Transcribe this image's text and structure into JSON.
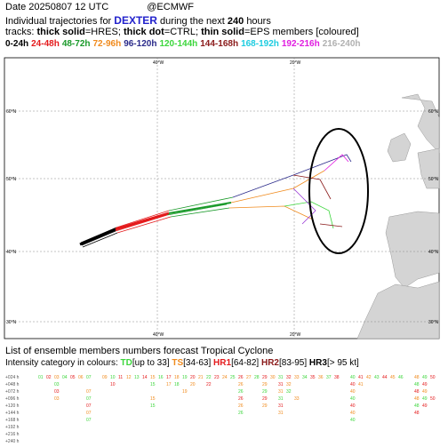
{
  "header": {
    "date": "Date 20250807 12 UTC",
    "source": "@ECMWF",
    "line2": {
      "prefix": "Individual trajectories for",
      "storm": "DEXTER",
      "middle": "during the next",
      "hours": "240",
      "suffix": "hours"
    },
    "line3": [
      {
        "text": "tracks: ",
        "bold": false
      },
      {
        "text": "thick solid",
        "bold": true
      },
      {
        "text": "=HRES; ",
        "bold": false
      },
      {
        "text": "thick dot",
        "bold": true
      },
      {
        "text": "=CTRL; ",
        "bold": false
      },
      {
        "text": "thin solid",
        "bold": true
      },
      {
        "text": "=EPS members [coloured]",
        "bold": false
      }
    ],
    "periods": [
      {
        "label": "0-24h",
        "color": "#000000"
      },
      {
        "label": "24-48h",
        "color": "#e41a1c"
      },
      {
        "label": "48-72h",
        "color": "#1a9a2a"
      },
      {
        "label": "72-96h",
        "color": "#f08a1c"
      },
      {
        "label": "96-120h",
        "color": "#2a2a8a"
      },
      {
        "label": "120-144h",
        "color": "#3cd63c"
      },
      {
        "label": "144-168h",
        "color": "#8a1a1a"
      },
      {
        "label": "168-192h",
        "color": "#1ccce0"
      },
      {
        "label": "192-216h",
        "color": "#e01ce0"
      },
      {
        "label": "216-240h",
        "color": "#b0b0b0"
      }
    ]
  },
  "map": {
    "lat_labels": [
      "60°N",
      "50°N",
      "40°N",
      "30°N"
    ],
    "lon_labels": [
      "40°W",
      "20°W"
    ]
  },
  "footer": {
    "title": "List of ensemble members numbers forecast Tropical Cyclone",
    "intensity": [
      {
        "text": "Intensity category in colours: ",
        "color": "#000000"
      },
      {
        "text": "TD",
        "color": "#3cd63c"
      },
      {
        "text": "[up to 33] ",
        "color": "#000000"
      },
      {
        "text": "TS",
        "color": "#f08a1c"
      },
      {
        "text": "[34-63] ",
        "color": "#000000"
      },
      {
        "text": "HR1",
        "color": "#e41a1c"
      },
      {
        "text": "[64-82] ",
        "color": "#000000"
      },
      {
        "text": "HR2",
        "color": "#8a1a1a"
      },
      {
        "text": "[83-95] ",
        "color": "#000000"
      },
      {
        "text": "HR3",
        "color": "#000000"
      },
      {
        "text": "[> 95 kt]",
        "color": "#000000"
      }
    ],
    "rows": [
      {
        "label": "+024 h",
        "members": [
          "01",
          "02",
          "03",
          "04",
          "05",
          "06",
          "07",
          "09",
          "10",
          "11",
          "12",
          "13",
          "14",
          "15",
          "16",
          "17",
          "18",
          "19",
          "20",
          "21",
          "22",
          "23",
          "24",
          "25",
          "26",
          "27",
          "28",
          "29",
          "30",
          "31",
          "32",
          "33",
          "34",
          "35",
          "36",
          "37",
          "38",
          "40",
          "41",
          "42",
          "43",
          "44",
          "45",
          "46",
          "48",
          "49",
          "50"
        ]
      },
      {
        "label": "+048 h",
        "members": [
          "03",
          "10",
          "15",
          "17",
          "18",
          "20",
          "22",
          "26",
          "29",
          "31",
          "32",
          "40",
          "41",
          "48",
          "49"
        ]
      },
      {
        "label": "+072 h",
        "members": [
          "03",
          "07",
          "19",
          "26",
          "29",
          "31",
          "32",
          "40",
          "48",
          "49"
        ]
      },
      {
        "label": "+096 h",
        "members": [
          "03",
          "07",
          "15",
          "26",
          "29",
          "31",
          "33",
          "40",
          "48",
          "49",
          "50"
        ]
      },
      {
        "label": "+120 h",
        "members": [
          "07",
          "15",
          "26",
          "29",
          "31",
          "40",
          "48",
          "49"
        ]
      },
      {
        "label": "+144 h",
        "members": [
          "07",
          "26",
          "31",
          "40",
          "48"
        ]
      },
      {
        "label": "+168 h",
        "members": [
          "07",
          "40"
        ]
      },
      {
        "label": "+192 h"
      },
      {
        "label": "+216 h"
      },
      {
        "label": "+240 h"
      }
    ]
  }
}
